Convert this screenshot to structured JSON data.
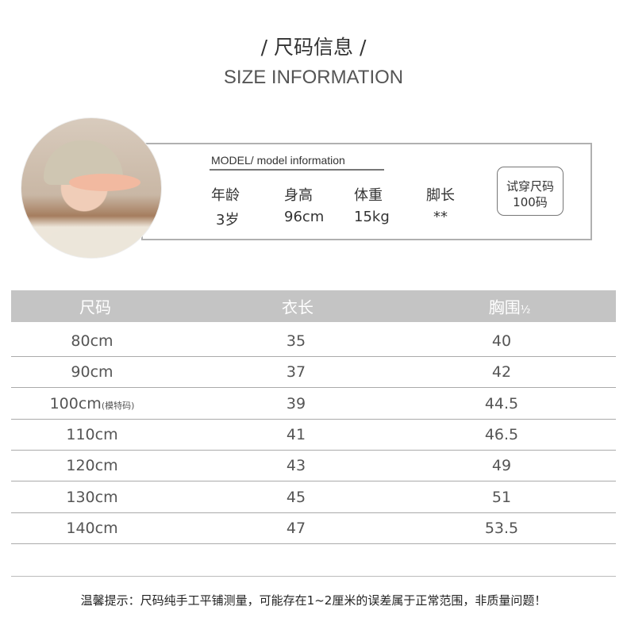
{
  "header": {
    "title_cn": "/ 尺码信息 /",
    "title_en": "SIZE INFORMATION"
  },
  "model": {
    "label": "MODEL/ model information",
    "fields": [
      {
        "label": "年龄",
        "value": "3岁"
      },
      {
        "label": "身高",
        "value": "96cm"
      },
      {
        "label": "体重",
        "value": "15kg"
      },
      {
        "label": "脚长",
        "value": "**"
      }
    ],
    "tryon_label": "试穿尺码",
    "tryon_value": "100码"
  },
  "table": {
    "headers": [
      "尺码",
      "衣长",
      "胸围"
    ],
    "header_suffix": "½",
    "rows": [
      {
        "size": "80cm",
        "note": "",
        "length": "35",
        "chest": "40"
      },
      {
        "size": "90cm",
        "note": "",
        "length": "37",
        "chest": "42"
      },
      {
        "size": "100cm",
        "note": "(模特码)",
        "length": "39",
        "chest": "44.5"
      },
      {
        "size": "110cm",
        "note": "",
        "length": "41",
        "chest": "46.5"
      },
      {
        "size": "120cm",
        "note": "",
        "length": "43",
        "chest": "49"
      },
      {
        "size": "130cm",
        "note": "",
        "length": "45",
        "chest": "51"
      },
      {
        "size": "140cm",
        "note": "",
        "length": "47",
        "chest": "53.5"
      }
    ]
  },
  "footer": "温馨提示：尺码纯手工平铺测量，可能存在1~2厘米的误差属于正常范围，非质量问题！"
}
